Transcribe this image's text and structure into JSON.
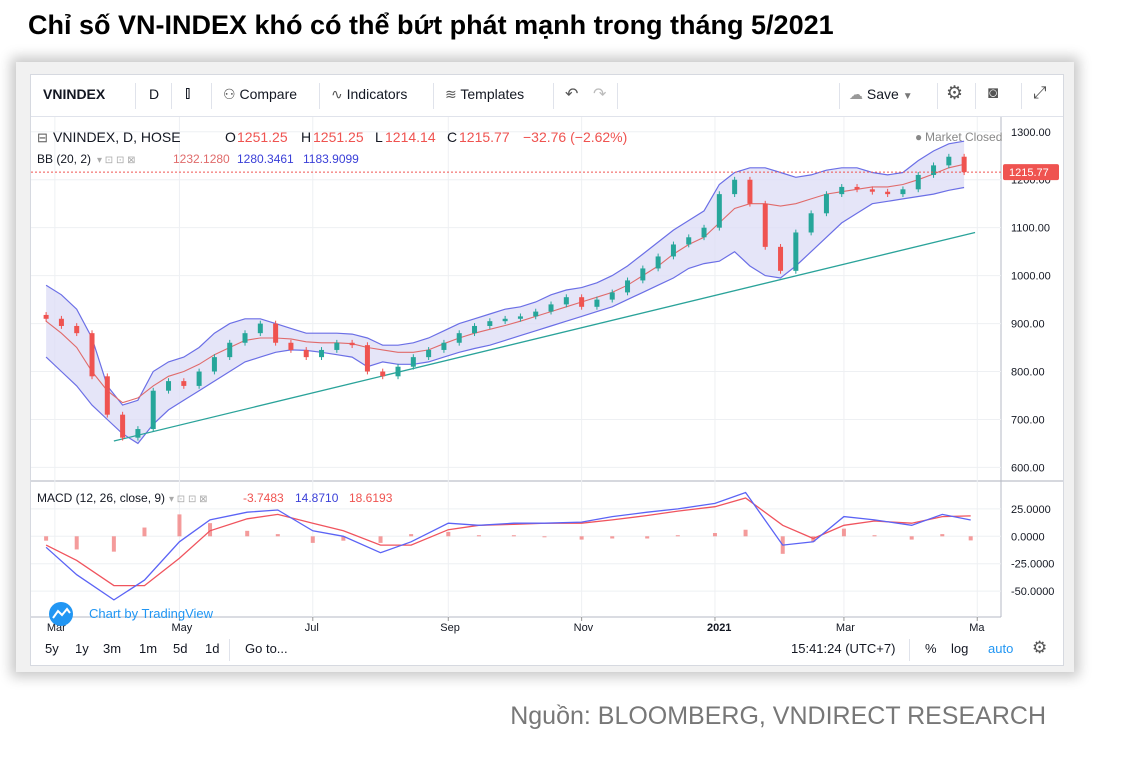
{
  "title": "Chỉ số VN-INDEX khó có thể bứt phát mạnh trong tháng 5/2021",
  "source": "Nguồn: BLOOMBERG, VNDIRECT RESEARCH",
  "toolbar": {
    "symbol": "VNINDEX",
    "interval": "D",
    "compare": "Compare",
    "indicators": "Indicators",
    "templates": "Templates",
    "save": "Save"
  },
  "legend": {
    "symbol_line": "VNINDEX, D, HOSE",
    "open_label": "O",
    "open": "1251.25",
    "high_label": "H",
    "high": "1251.25",
    "low_label": "L",
    "low": "1214.14",
    "close_label": "C",
    "close": "1215.77",
    "change": "−32.76 (−2.62%)",
    "market_status": "Market Closed",
    "bb_label": "BB (20, 2)",
    "bb_basis": "1232.1280",
    "bb_upper": "1280.3461",
    "bb_lower": "1183.9099",
    "macd_label": "MACD (12, 26, close, 9)",
    "macd_hist": "-3.7483",
    "macd_line": "14.8710",
    "macd_signal": "18.6193"
  },
  "watermark": "Chart by TradingView",
  "price_badge": "1215.77",
  "footer": {
    "ranges": [
      "5y",
      "1y",
      "3m",
      "1m",
      "5d",
      "1d"
    ],
    "goto": "Go to...",
    "time": "15:41:24 (UTC+7)",
    "percent": "%",
    "log": "log",
    "auto": "auto"
  },
  "colors": {
    "up": "#26a69a",
    "down": "#ef5350",
    "bb_band": "#6b6fe6",
    "bb_fill": "#dcdcf5",
    "bb_basis": "#e06b6b",
    "trendline": "#2aa39a",
    "macd_line": "#5b63f5",
    "signal_line": "#f0545e",
    "hist": "#ef7070"
  },
  "chart_data": [
    {
      "type": "candlestick",
      "title": "VNINDEX, D, HOSE",
      "x_ticks": [
        "Mar",
        "May",
        "Jul",
        "Sep",
        "Nov",
        "2021",
        "Mar",
        "Ma"
      ],
      "y_ticks": [
        "1300.00",
        "1200.00",
        "1100.00",
        "1000.00",
        "900.00",
        "800.00",
        "700.00",
        "600.00"
      ],
      "ylim": [
        580,
        1310
      ],
      "series": [
        {
          "name": "Close",
          "x": [
            "2020-03-01",
            "2020-03-08",
            "2020-03-15",
            "2020-03-22",
            "2020-03-29",
            "2020-04-05",
            "2020-04-12",
            "2020-04-19",
            "2020-04-26",
            "2020-05-03",
            "2020-05-10",
            "2020-05-17",
            "2020-05-24",
            "2020-05-31",
            "2020-06-07",
            "2020-06-14",
            "2020-06-21",
            "2020-06-28",
            "2020-07-05",
            "2020-07-12",
            "2020-07-19",
            "2020-07-26",
            "2020-08-02",
            "2020-08-09",
            "2020-08-16",
            "2020-08-23",
            "2020-08-30",
            "2020-09-06",
            "2020-09-13",
            "2020-09-20",
            "2020-09-27",
            "2020-10-04",
            "2020-10-11",
            "2020-10-18",
            "2020-10-25",
            "2020-11-01",
            "2020-11-08",
            "2020-11-15",
            "2020-11-22",
            "2020-11-29",
            "2020-12-06",
            "2020-12-13",
            "2020-12-20",
            "2020-12-27",
            "2021-01-03",
            "2021-01-10",
            "2021-01-17",
            "2021-01-24",
            "2021-01-31",
            "2021-02-07",
            "2021-02-14",
            "2021-02-21",
            "2021-02-28",
            "2021-03-07",
            "2021-03-14",
            "2021-03-21",
            "2021-03-28",
            "2021-04-04",
            "2021-04-11",
            "2021-04-18",
            "2021-04-25"
          ],
          "values": [
            910,
            895,
            880,
            790,
            710,
            662,
            680,
            760,
            780,
            770,
            800,
            830,
            860,
            880,
            900,
            860,
            845,
            830,
            845,
            860,
            855,
            800,
            790,
            810,
            830,
            845,
            860,
            880,
            895,
            905,
            910,
            915,
            925,
            940,
            955,
            935,
            950,
            965,
            990,
            1015,
            1040,
            1065,
            1080,
            1100,
            1170,
            1200,
            1150,
            1060,
            1010,
            1090,
            1130,
            1170,
            1185,
            1180,
            1175,
            1170,
            1180,
            1210,
            1230,
            1248,
            1215.77
          ]
        }
      ],
      "bollinger": {
        "name": "BB (20, 2)",
        "upper": [
          980,
          960,
          930,
          870,
          770,
          730,
          740,
          800,
          820,
          830,
          850,
          880,
          900,
          910,
          910,
          900,
          890,
          880,
          880,
          880,
          878,
          870,
          855,
          855,
          860,
          870,
          885,
          900,
          910,
          920,
          930,
          935,
          945,
          960,
          970,
          975,
          985,
          1000,
          1020,
          1045,
          1070,
          1095,
          1115,
          1135,
          1190,
          1215,
          1225,
          1225,
          1215,
          1205,
          1210,
          1220,
          1225,
          1225,
          1215,
          1210,
          1215,
          1240,
          1260,
          1275,
          1280.35
        ],
        "basis": [
          905,
          880,
          850,
          800,
          760,
          735,
          745,
          770,
          790,
          800,
          815,
          835,
          850,
          865,
          870,
          870,
          868,
          862,
          860,
          860,
          858,
          850,
          845,
          840,
          840,
          845,
          858,
          870,
          880,
          888,
          896,
          905,
          915,
          925,
          935,
          945,
          955,
          965,
          980,
          1000,
          1020,
          1045,
          1065,
          1080,
          1110,
          1140,
          1150,
          1150,
          1145,
          1150,
          1160,
          1170,
          1175,
          1180,
          1185,
          1185,
          1190,
          1200,
          1212,
          1225,
          1232.13
        ],
        "lower": [
          830,
          800,
          770,
          730,
          700,
          670,
          650,
          690,
          720,
          740,
          760,
          780,
          800,
          820,
          830,
          840,
          845,
          844,
          840,
          835,
          830,
          810,
          820,
          815,
          815,
          820,
          830,
          840,
          848,
          855,
          865,
          875,
          885,
          895,
          905,
          915,
          925,
          935,
          950,
          965,
          980,
          995,
          1015,
          1025,
          1030,
          1050,
          1020,
          1000,
          995,
          1020,
          1050,
          1080,
          1110,
          1130,
          1150,
          1155,
          1160,
          1165,
          1170,
          1178,
          1183.91
        ]
      },
      "trendline": {
        "from": [
          "2020-04-01",
          655
        ],
        "to": [
          "2021-04-30",
          1090
        ]
      }
    },
    {
      "type": "line",
      "title": "MACD (12, 26, close, 9)",
      "y_ticks": [
        "25.0000",
        "0.0000",
        "-25.0000",
        "-50.0000"
      ],
      "ylim": [
        -70,
        45
      ],
      "x": [
        "2020-03-01",
        "2020-03-15",
        "2020-04-01",
        "2020-04-15",
        "2020-05-01",
        "2020-05-15",
        "2020-06-01",
        "2020-06-15",
        "2020-07-01",
        "2020-07-15",
        "2020-08-01",
        "2020-08-15",
        "2020-09-01",
        "2020-09-15",
        "2020-10-01",
        "2020-10-15",
        "2020-11-01",
        "2020-11-15",
        "2020-12-01",
        "2020-12-15",
        "2021-01-01",
        "2021-01-15",
        "2021-02-01",
        "2021-02-15",
        "2021-03-01",
        "2021-03-15",
        "2021-04-01",
        "2021-04-15",
        "2021-04-28"
      ],
      "series": [
        {
          "name": "MACD",
          "values": [
            -10,
            -35,
            -58,
            -40,
            -5,
            15,
            22,
            24,
            5,
            0,
            -15,
            -5,
            12,
            10,
            12,
            12,
            13,
            18,
            22,
            25,
            30,
            40,
            -8,
            -5,
            18,
            15,
            10,
            20,
            14.87
          ]
        },
        {
          "name": "Signal",
          "values": [
            -8,
            -22,
            -45,
            -45,
            -20,
            5,
            16,
            20,
            12,
            5,
            -8,
            -8,
            6,
            10,
            11,
            12,
            12,
            15,
            19,
            23,
            27,
            35,
            10,
            -2,
            10,
            14,
            12,
            18,
            18.62
          ]
        },
        {
          "name": "Histogram",
          "values": [
            -4,
            -12,
            -14,
            8,
            20,
            12,
            5,
            2,
            -6,
            -4,
            -6,
            2,
            4,
            1,
            1,
            0,
            -3,
            -2,
            -2,
            1,
            3,
            6,
            -16,
            -5,
            7,
            1,
            -3,
            2,
            -3.75
          ]
        }
      ]
    }
  ]
}
